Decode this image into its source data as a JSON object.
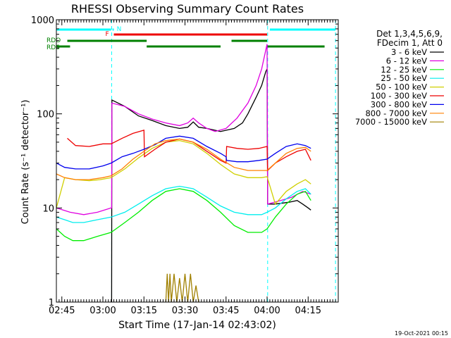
{
  "chart_data": {
    "type": "line",
    "title": "RHESSI Observing Summary Count Rates",
    "xlabel": "Start Time (17-Jan-14 02:43:02)",
    "ylabel": "Count Rate (s⁻¹ detector⁻¹)",
    "x_ticks": [
      "02:45",
      "03:00",
      "03:15",
      "03:30",
      "03:45",
      "04:00",
      "04:15"
    ],
    "x_tick_minutes": [
      2,
      17,
      32,
      47,
      62,
      77,
      92
    ],
    "xlim_minutes": [
      0,
      103
    ],
    "yscale": "log",
    "ylim": [
      1,
      1000
    ],
    "y_ticks": [
      "1",
      "10",
      "100",
      "1000"
    ],
    "legend_header": [
      "Det 1,3,4,5,6,9,",
      "FDecim 1, Att 0"
    ],
    "series": [
      {
        "name": "3 - 6 keV",
        "color": "#000000",
        "points": [
          [
            20.2,
            1
          ],
          [
            20.3,
            140
          ],
          [
            25,
            120
          ],
          [
            30,
            95
          ],
          [
            35,
            85
          ],
          [
            40,
            75
          ],
          [
            45,
            70
          ],
          [
            48,
            72
          ],
          [
            50,
            82
          ],
          [
            52,
            72
          ],
          [
            55,
            70
          ],
          [
            60,
            65
          ],
          [
            65,
            70
          ],
          [
            68,
            80
          ],
          [
            70,
            100
          ],
          [
            73,
            150
          ],
          [
            75,
            200
          ],
          [
            76.5,
            280
          ],
          [
            77,
            300
          ],
          [
            77.2,
            11
          ],
          [
            80,
            11
          ],
          [
            85,
            11.5
          ],
          [
            88,
            12
          ],
          [
            90,
            11
          ],
          [
            92,
            10
          ],
          [
            93,
            9.5
          ]
        ]
      },
      {
        "name": "6 - 12 keV",
        "color": "#e000e0",
        "points": [
          [
            0,
            10
          ],
          [
            5,
            9
          ],
          [
            10,
            8.5
          ],
          [
            15,
            9
          ],
          [
            20,
            10
          ],
          [
            20.2,
            10
          ],
          [
            20.3,
            130
          ],
          [
            25,
            120
          ],
          [
            30,
            100
          ],
          [
            35,
            88
          ],
          [
            40,
            80
          ],
          [
            45,
            75
          ],
          [
            48,
            80
          ],
          [
            50,
            90
          ],
          [
            52,
            80
          ],
          [
            55,
            70
          ],
          [
            58,
            65
          ],
          [
            62,
            70
          ],
          [
            66,
            90
          ],
          [
            70,
            130
          ],
          [
            73,
            200
          ],
          [
            75,
            300
          ],
          [
            77,
            550
          ],
          [
            77.2,
            11
          ],
          [
            82,
            12
          ],
          [
            86,
            13
          ],
          [
            90,
            15
          ],
          [
            93,
            14
          ]
        ]
      },
      {
        "name": "12 - 25 keV",
        "color": "#00ee00",
        "points": [
          [
            0,
            6
          ],
          [
            3,
            5
          ],
          [
            6,
            4.5
          ],
          [
            10,
            4.5
          ],
          [
            15,
            5
          ],
          [
            20,
            5.5
          ],
          [
            25,
            7
          ],
          [
            30,
            9
          ],
          [
            35,
            12
          ],
          [
            40,
            15
          ],
          [
            45,
            16
          ],
          [
            50,
            15
          ],
          [
            55,
            12
          ],
          [
            60,
            9
          ],
          [
            65,
            6.5
          ],
          [
            70,
            5.5
          ],
          [
            75,
            5.5
          ],
          [
            77,
            6
          ],
          [
            80,
            8
          ],
          [
            84,
            11
          ],
          [
            88,
            14
          ],
          [
            91,
            15
          ],
          [
            93,
            12
          ]
        ]
      },
      {
        "name": "25 - 50 keV",
        "color": "#00eeee",
        "points": [
          [
            0,
            8
          ],
          [
            3,
            7.5
          ],
          [
            6,
            7
          ],
          [
            10,
            7
          ],
          [
            15,
            7.5
          ],
          [
            20,
            8
          ],
          [
            25,
            9
          ],
          [
            30,
            11
          ],
          [
            35,
            13.5
          ],
          [
            40,
            16
          ],
          [
            45,
            17
          ],
          [
            50,
            16
          ],
          [
            55,
            13
          ],
          [
            60,
            10.5
          ],
          [
            65,
            9
          ],
          [
            70,
            8.5
          ],
          [
            75,
            8.5
          ],
          [
            77,
            9
          ],
          [
            80,
            10
          ],
          [
            84,
            12.5
          ],
          [
            88,
            15
          ],
          [
            91,
            16
          ],
          [
            93,
            14
          ]
        ]
      },
      {
        "name": "50 - 100 keV",
        "color": "#d0d000",
        "points": [
          [
            0,
            10
          ],
          [
            3,
            21
          ],
          [
            7,
            20
          ],
          [
            12,
            19.5
          ],
          [
            16,
            20
          ],
          [
            20,
            21
          ],
          [
            25,
            26
          ],
          [
            30,
            34
          ],
          [
            35,
            43
          ],
          [
            40,
            50
          ],
          [
            45,
            52
          ],
          [
            50,
            48
          ],
          [
            55,
            38
          ],
          [
            60,
            29
          ],
          [
            65,
            23
          ],
          [
            70,
            21
          ],
          [
            75,
            21
          ],
          [
            77,
            21.5
          ],
          [
            80,
            11
          ],
          [
            84,
            15
          ],
          [
            88,
            18
          ],
          [
            91,
            20
          ],
          [
            93,
            18
          ]
        ]
      },
      {
        "name": "100 - 300 keV",
        "color": "#ee0000",
        "points": [
          [
            4,
            55
          ],
          [
            7,
            46
          ],
          [
            12,
            45
          ],
          [
            17,
            48
          ],
          [
            20,
            48
          ],
          [
            24,
            55
          ],
          [
            28,
            62
          ],
          [
            32,
            67
          ],
          [
            32.2,
            35
          ],
          [
            36,
            42
          ],
          [
            40,
            50
          ],
          [
            45,
            54
          ],
          [
            50,
            50
          ],
          [
            55,
            40
          ],
          [
            60,
            32
          ],
          [
            62,
            30
          ],
          [
            62.2,
            45
          ],
          [
            66,
            43
          ],
          [
            70,
            42
          ],
          [
            74,
            43
          ],
          [
            77,
            45
          ],
          [
            77.2,
            25
          ],
          [
            80,
            30
          ],
          [
            84,
            35
          ],
          [
            88,
            40
          ],
          [
            91,
            42
          ],
          [
            93,
            32
          ]
        ]
      },
      {
        "name": "300 - 800 keV",
        "color": "#0000ee",
        "points": [
          [
            0,
            30
          ],
          [
            3,
            27
          ],
          [
            7,
            26
          ],
          [
            12,
            26
          ],
          [
            17,
            28
          ],
          [
            20,
            30
          ],
          [
            24,
            35
          ],
          [
            28,
            38
          ],
          [
            32,
            42
          ],
          [
            36,
            47
          ],
          [
            40,
            55
          ],
          [
            45,
            58
          ],
          [
            50,
            55
          ],
          [
            55,
            45
          ],
          [
            60,
            38
          ],
          [
            62,
            35
          ],
          [
            62.2,
            32
          ],
          [
            66,
            31
          ],
          [
            70,
            31
          ],
          [
            74,
            32
          ],
          [
            77,
            33
          ],
          [
            80,
            38
          ],
          [
            84,
            45
          ],
          [
            88,
            48
          ],
          [
            91,
            46
          ],
          [
            93,
            43
          ]
        ]
      },
      {
        "name": "800 - 7000 keV",
        "color": "#ff8000",
        "points": [
          [
            0,
            23
          ],
          [
            3,
            21
          ],
          [
            7,
            20
          ],
          [
            12,
            20
          ],
          [
            17,
            21
          ],
          [
            20,
            22
          ],
          [
            24,
            26
          ],
          [
            28,
            33
          ],
          [
            32,
            40
          ],
          [
            36,
            48
          ],
          [
            40,
            52
          ],
          [
            45,
            54
          ],
          [
            50,
            50
          ],
          [
            55,
            42
          ],
          [
            60,
            33
          ],
          [
            65,
            27
          ],
          [
            70,
            25
          ],
          [
            75,
            25
          ],
          [
            77,
            25
          ],
          [
            80,
            30
          ],
          [
            84,
            38
          ],
          [
            88,
            43
          ],
          [
            91,
            44
          ],
          [
            93,
            40
          ]
        ]
      },
      {
        "name": "7000 - 15000 keV",
        "color": "#a08000",
        "points": [
          [
            40,
            1
          ],
          [
            40.5,
            2
          ],
          [
            41,
            1
          ],
          [
            41.5,
            2
          ],
          [
            42,
            1
          ],
          [
            43,
            2
          ],
          [
            44,
            1
          ],
          [
            45,
            1.8
          ],
          [
            46,
            1
          ],
          [
            47,
            2
          ],
          [
            48,
            1
          ],
          [
            49,
            2
          ],
          [
            50,
            1
          ],
          [
            51,
            1.5
          ],
          [
            52,
            1
          ]
        ]
      }
    ],
    "state_bars": [
      {
        "label": "",
        "color": "#00ffff",
        "segments": [
          [
            0,
            20
          ]
        ]
      },
      {
        "label": "N",
        "color": "#00ffff",
        "segments": [
          [
            20.5,
            21
          ]
        ]
      },
      {
        "label": "",
        "color": "#00ffff",
        "segments": [
          [
            78,
            102
          ]
        ]
      },
      {
        "label": "F",
        "color": "#ee0000",
        "segments": [
          [
            21,
            77
          ]
        ]
      },
      {
        "label": "RDO",
        "color": "#008000",
        "segments": [
          [
            4,
            33
          ],
          [
            64,
            77
          ]
        ]
      },
      {
        "label": "RD6",
        "color": "#008000",
        "segments": [
          [
            0,
            5
          ],
          [
            33,
            60
          ],
          [
            77,
            98
          ]
        ]
      }
    ],
    "vlines_minutes": [
      20.2,
      77.2,
      102
    ]
  },
  "footer": {
    "date": "19-Oct-2021 00:15"
  }
}
